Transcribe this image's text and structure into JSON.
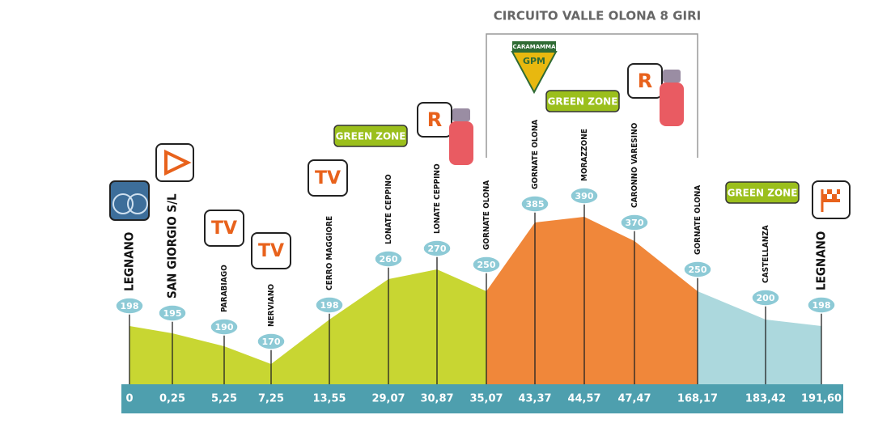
{
  "circuit_title": "CIRCUITO VALLE OLONA 8 GIRI",
  "points": [
    {
      "name": "LEGNANO",
      "altitude": "198",
      "km": "0"
    },
    {
      "name": "SAN GIORGIO S/L",
      "altitude": "195",
      "km": "0,25"
    },
    {
      "name": "PARABIAGO",
      "altitude": "190",
      "km": "5,25"
    },
    {
      "name": "NERVIANO",
      "altitude": "170",
      "km": "7,25"
    },
    {
      "name": "CERRO MAGGIORE",
      "altitude": "198",
      "km": "13,55"
    },
    {
      "name": "LONATE CEPPINO",
      "altitude": "260",
      "km": "29,07"
    },
    {
      "name": "LONATE CEPPINO",
      "altitude": "270",
      "km": "30,87"
    },
    {
      "name": "GORNATE OLONA",
      "altitude": "250",
      "km": "35,07"
    },
    {
      "name": "GORNATE OLONA",
      "altitude": "385",
      "km": "43,37"
    },
    {
      "name": "MORAZZONE",
      "altitude": "390",
      "km": "44,57"
    },
    {
      "name": "CARONNO VARESINO",
      "altitude": "370",
      "km": "47,47"
    },
    {
      "name": "GORNATE OLONA",
      "altitude": "250",
      "km": "168,17"
    },
    {
      "name": "CASTELLANZA",
      "altitude": "200",
      "km": "183,42"
    },
    {
      "name": "LEGNANO",
      "altitude": "198",
      "km": "191,60"
    }
  ],
  "tv_badges": [
    "TV",
    "TV",
    "TV"
  ],
  "green_zones": [
    "GREEN ZONE",
    "GREEN ZONE",
    "GREEN ZONE"
  ],
  "feed_zones": [
    "R",
    "R"
  ],
  "gpm": {
    "sponsor": "CARAMAMMA",
    "label": "GPM"
  }
}
